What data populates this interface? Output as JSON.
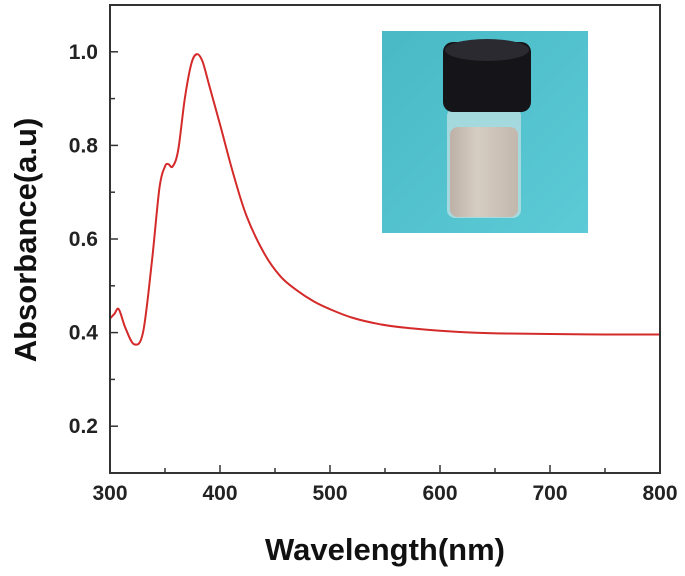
{
  "chart_data": {
    "type": "line",
    "title": "",
    "xlabel": "Wavelength(nm)",
    "ylabel": "Absorbance(a.u)",
    "xlim": [
      300,
      800
    ],
    "ylim": [
      0.1,
      1.1
    ],
    "xticks": [
      300,
      400,
      500,
      600,
      700,
      800
    ],
    "xtick_labels": [
      "300",
      "400",
      "500",
      "600",
      "700",
      "800"
    ],
    "yticks": [
      0.2,
      0.4,
      0.6,
      0.8,
      1.0
    ],
    "ytick_labels": [
      "0.2",
      "0.4",
      "0.6",
      "0.8",
      "1.0"
    ],
    "grid": false,
    "series": [
      {
        "name": "absorbance",
        "color": "#d42a2a",
        "x": [
          300,
          304,
          308,
          314,
          322,
          330,
          338,
          345,
          350,
          353,
          357,
          362,
          368,
          374,
          379,
          384,
          390,
          400,
          412,
          424,
          440,
          455,
          470,
          485,
          500,
          520,
          545,
          570,
          600,
          630,
          660,
          700,
          750,
          800
        ],
        "y": [
          0.43,
          0.44,
          0.45,
          0.41,
          0.375,
          0.4,
          0.55,
          0.71,
          0.755,
          0.76,
          0.755,
          0.79,
          0.9,
          0.975,
          0.995,
          0.98,
          0.93,
          0.845,
          0.74,
          0.65,
          0.57,
          0.52,
          0.49,
          0.467,
          0.45,
          0.432,
          0.418,
          0.41,
          0.404,
          0.4,
          0.398,
          0.397,
          0.396,
          0.396
        ]
      }
    ],
    "inset": "photo of vial with milky beige suspension and black cap on cyan background"
  },
  "colors": {
    "line": "#d42a2a",
    "axis": "#333333",
    "inset_bg": "#4fc3cf"
  }
}
